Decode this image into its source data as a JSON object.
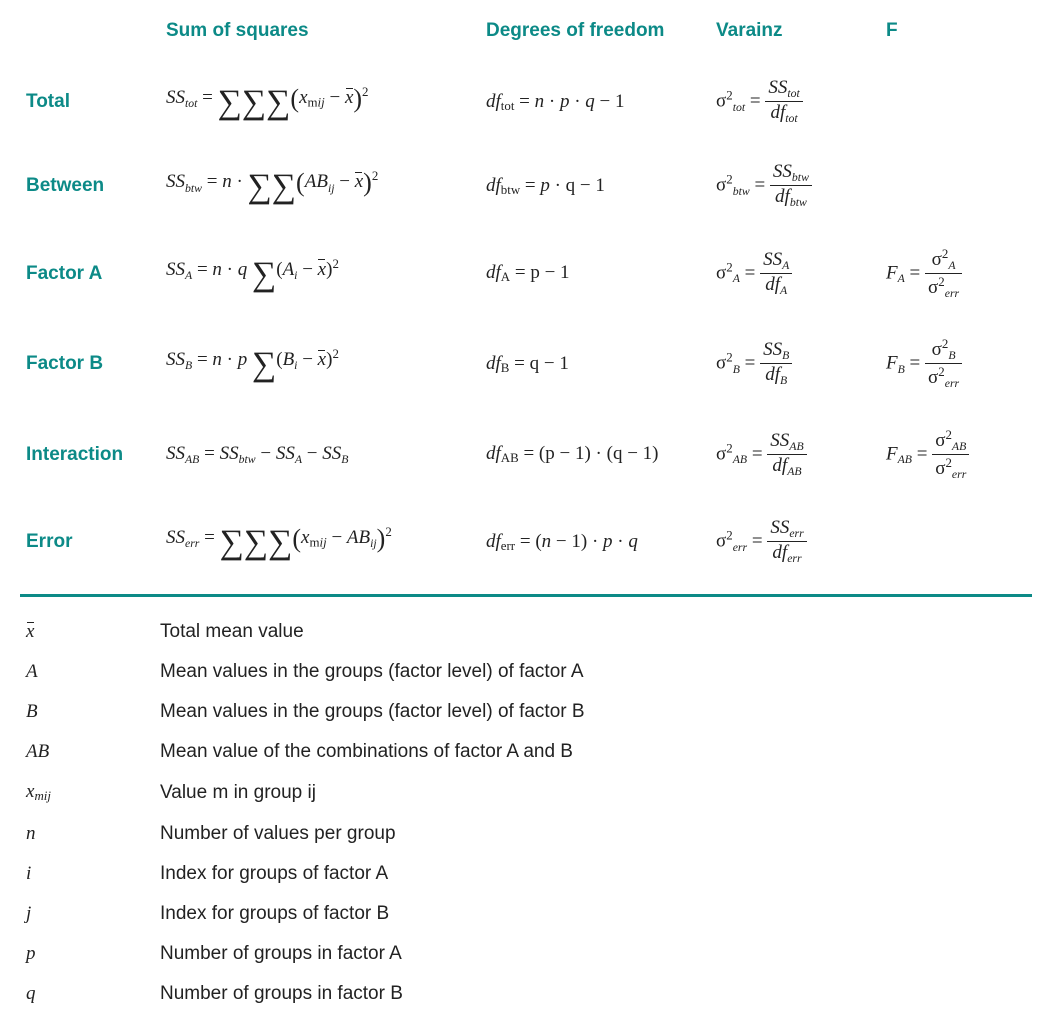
{
  "colors": {
    "accent": "#0c8a87",
    "text": "#222222",
    "background": "#ffffff"
  },
  "typography": {
    "label_fontsize": 19,
    "body_fontsize": 18,
    "math_family": "Cambria Math"
  },
  "table": {
    "columns": [
      "",
      "Sum of squares",
      "Degrees of freedom",
      "Varainz",
      "F"
    ],
    "rows": [
      {
        "label": "Total",
        "ss": "SS_{tot} = ΣΣΣ (x_{mij} − x̄)²",
        "df": "df_{tot} = n · p · q − 1",
        "var": "σ²_{tot} = SS_{tot} / df_{tot}",
        "f": ""
      },
      {
        "label": "Between",
        "ss": "SS_{btw} = n · ΣΣ (AB_{ij} − x̄)²",
        "df": "df_{btw} = p · q − 1",
        "var": "σ²_{btw} = SS_{btw} / df_{btw}",
        "f": ""
      },
      {
        "label": "Factor A",
        "ss": "SS_{A} = n · q Σ (A_{i} − x̄)²",
        "df": "df_{A} = p − 1",
        "var": "σ²_{A} = SS_{A} / df_{A}",
        "f": "F_{A} = σ²_{A} / σ²_{err}"
      },
      {
        "label": "Factor B",
        "ss": "SS_{B} = n · p Σ (B_{i} − x̄)²",
        "df": "df_{B} = q − 1",
        "var": "σ²_{B} = SS_{B} / df_{B}",
        "f": "F_{B} = σ²_{B} / σ²_{err}"
      },
      {
        "label": "Interaction",
        "ss": "SS_{AB} = SS_{btw} − SS_{A} − SS_{B}",
        "df": "df_{AB} = (p − 1) · (q − 1)",
        "var": "σ²_{AB} = SS_{AB} / df_{AB}",
        "f": "F_{AB} = σ²_{AB} / σ²_{err}"
      },
      {
        "label": "Error",
        "ss": "SS_{err} = ΣΣΣ (x_{mij} − AB_{ij})²",
        "df": "df_{err} = (n − 1) · p · q",
        "var": "σ²_{err} = SS_{err} / df_{err}",
        "f": ""
      }
    ]
  },
  "legend": [
    {
      "sym": "x̄",
      "desc": "Total mean value"
    },
    {
      "sym": "A",
      "desc": "Mean values in the groups (factor level) of factor A"
    },
    {
      "sym": "B",
      "desc": "Mean values in the groups (factor level) of factor B"
    },
    {
      "sym": "AB",
      "desc": "Mean value of the combinations of factor A and B"
    },
    {
      "sym": "x_{mij}",
      "desc": "Value m in group ij"
    },
    {
      "sym": "n",
      "desc": "Number of values per group"
    },
    {
      "sym": "i",
      "desc": "Index for groups of factor A"
    },
    {
      "sym": "j",
      "desc": "Index for groups of factor B"
    },
    {
      "sym": "p",
      "desc": "Number of groups in factor A"
    },
    {
      "sym": "q",
      "desc": "Number of groups in factor B"
    }
  ]
}
